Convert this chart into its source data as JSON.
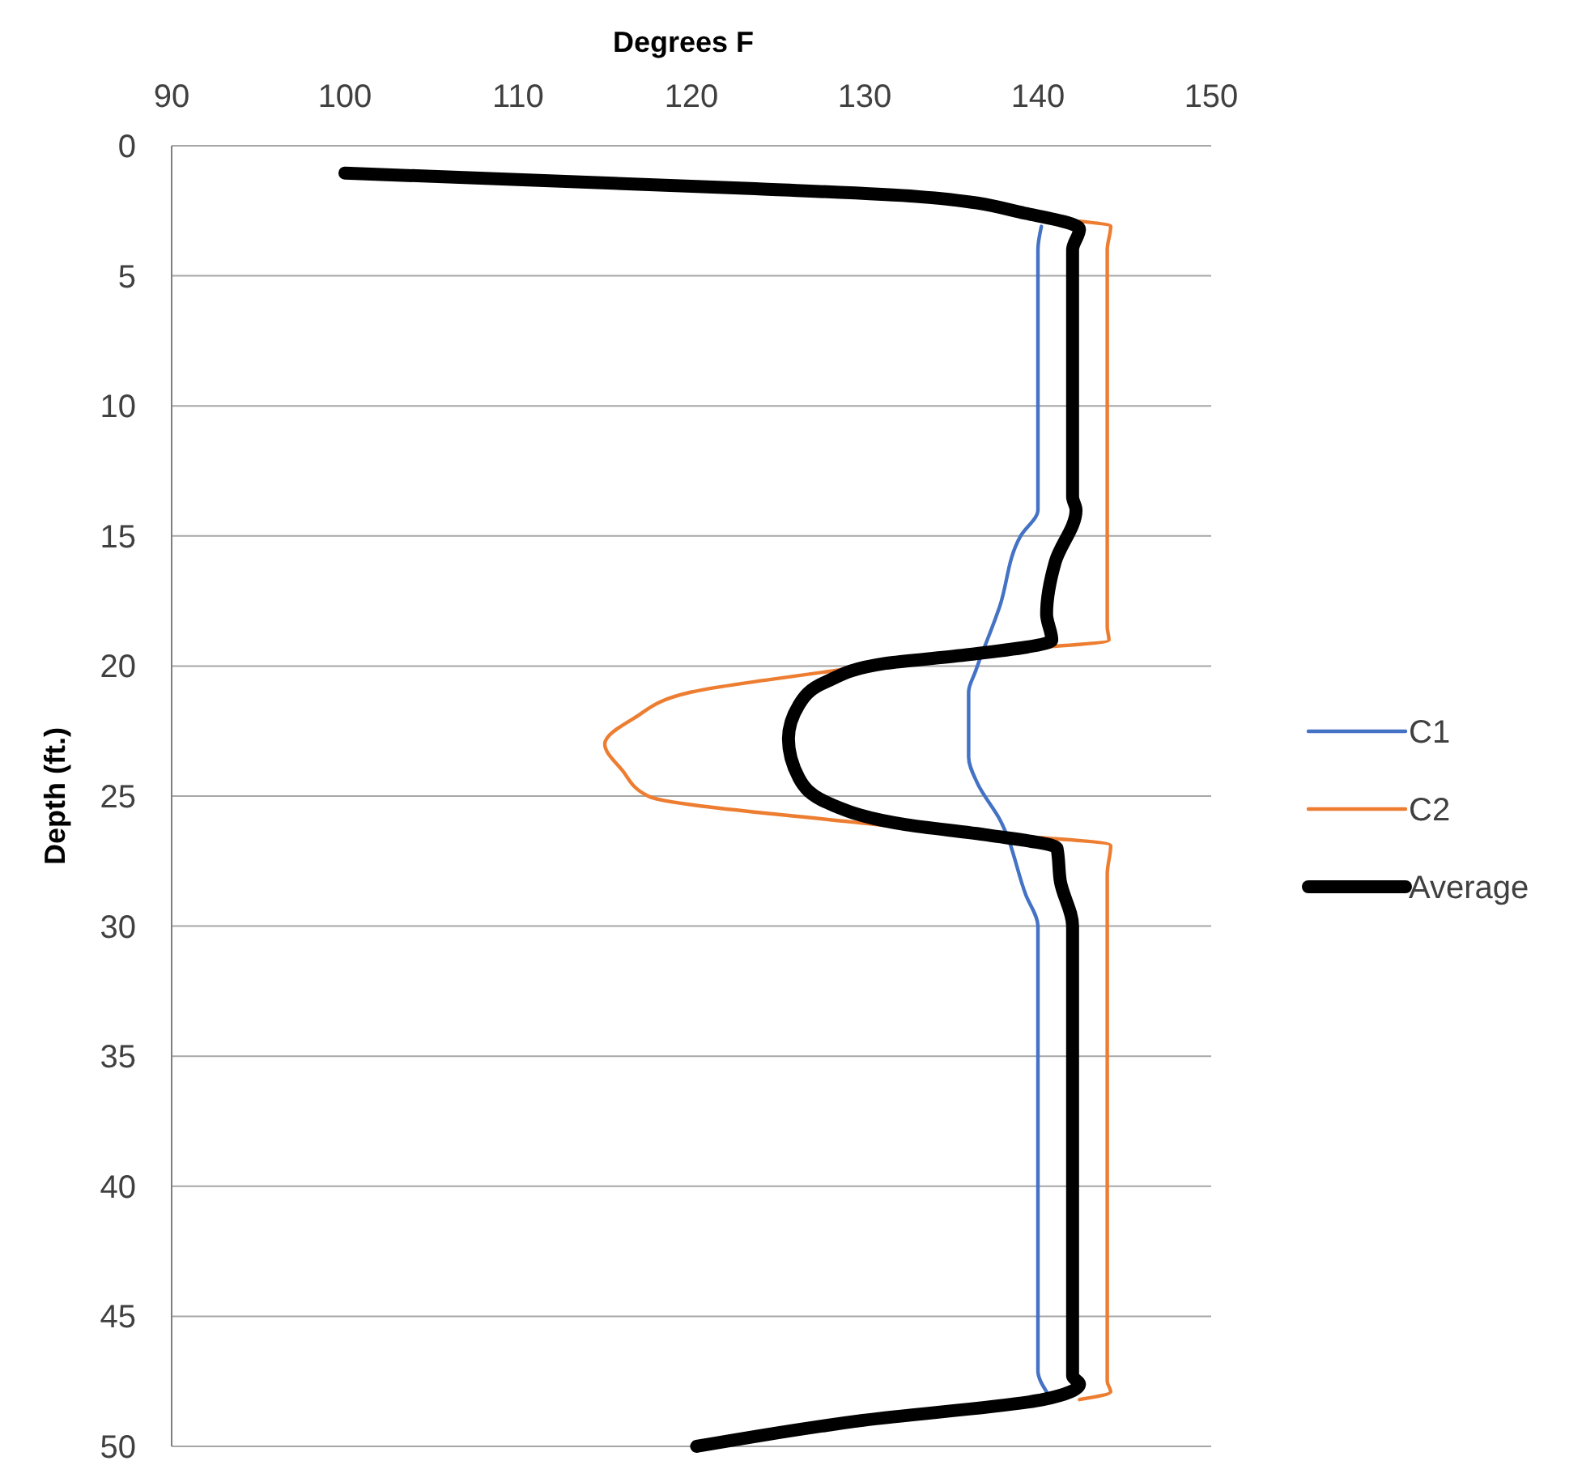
{
  "chart_data": {
    "type": "line",
    "xlabel": "Degrees F",
    "ylabel": "Depth (ft.)",
    "xlim": [
      90,
      150
    ],
    "xticks": [
      90,
      100,
      110,
      120,
      130,
      140,
      150
    ],
    "ylim": [
      50,
      0
    ],
    "yticks": [
      0,
      5,
      10,
      15,
      20,
      25,
      30,
      35,
      40,
      45,
      50
    ],
    "grid": "y",
    "legend": "right",
    "marker": "none",
    "line_style": "solid",
    "series": [
      {
        "name": "C1",
        "color": "#4472c4",
        "x": [
          140.2,
          140,
          140,
          140,
          139,
          137.8,
          136.4,
          136,
          136,
          136.5,
          137.8,
          139.3,
          140,
          140,
          140,
          140.5
        ],
        "values": [
          3.1,
          4,
          10,
          14,
          15,
          17.7,
          20.2,
          21,
          23.5,
          24.5,
          25.9,
          28.8,
          30,
          40,
          47.1,
          47.9
        ]
      },
      {
        "name": "C2",
        "color": "#ed7d31",
        "x": [
          142.4,
          144.2,
          144,
          144,
          144.1,
          135.5,
          128,
          120,
          116.7,
          115,
          116,
          117.5,
          129.3,
          133.6,
          144.2,
          144,
          144,
          144.2,
          142.4
        ],
        "values": [
          2.9,
          3.1,
          4,
          18.5,
          19,
          19.5,
          20.2,
          21,
          22,
          23,
          24,
          25,
          26,
          26.3,
          26.9,
          28,
          47.5,
          47.9,
          48.2
        ]
      },
      {
        "name": "Average",
        "color": "#000000",
        "x": [
          100,
          123.7,
          133,
          139.3,
          142.4,
          142,
          142,
          142.2,
          141,
          140.5,
          140.8,
          135.5,
          131.2,
          127.8,
          126.2,
          125.6,
          126.2,
          128,
          132.4,
          137.1,
          141.1,
          141.3,
          142,
          142,
          142.4,
          140.3,
          129.9,
          120.3
        ],
        "values": [
          1.05,
          1.65,
          1.95,
          2.6,
          3.2,
          4,
          13.5,
          14,
          16,
          18,
          19,
          19.6,
          19.9,
          20.6,
          21.5,
          22.8,
          24.3,
          25.3,
          26.1,
          26.5,
          27,
          28.3,
          30,
          47.3,
          47.6,
          48.2,
          49,
          50
        ]
      }
    ]
  }
}
